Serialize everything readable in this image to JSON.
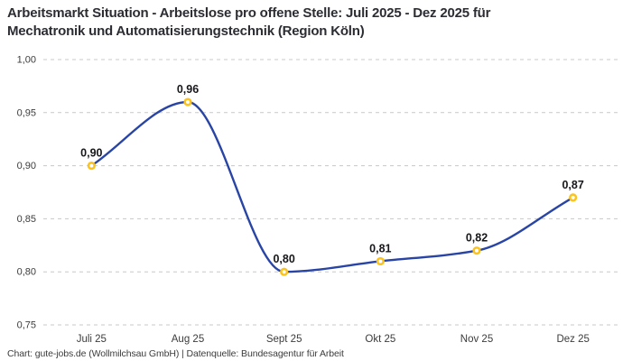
{
  "header": {
    "title_line1": "Arbeitsmarkt Situation - Arbeitslose pro offene Stelle: Juli 2025 - Dez 2025 für",
    "title_line2": "Mechatronik und Automatisierungstechnik (Region Köln)"
  },
  "chart_data": {
    "type": "line",
    "title": "Arbeitsmarkt Situation - Arbeitslose pro offene Stelle: Juli 2025 - Dez 2025 für Mechatronik und Automatisierungstechnik (Region Köln)",
    "categories": [
      "Juli 25",
      "Aug 25",
      "Sept 25",
      "Okt 25",
      "Nov 25",
      "Dez 25"
    ],
    "values": [
      0.9,
      0.96,
      0.8,
      0.81,
      0.82,
      0.87
    ],
    "point_labels": [
      "0,90",
      "0,96",
      "0,80",
      "0,81",
      "0,82",
      "0,87"
    ],
    "y_ticks": [
      {
        "value": 1.0,
        "label": "1,00"
      },
      {
        "value": 0.95,
        "label": "0,95"
      },
      {
        "value": 0.9,
        "label": "0,90"
      },
      {
        "value": 0.85,
        "label": "0,85"
      },
      {
        "value": 0.8,
        "label": "0,80"
      },
      {
        "value": 0.75,
        "label": "0,75"
      }
    ],
    "ylim": [
      0.75,
      1.0
    ],
    "xlabel": "",
    "ylabel": "",
    "grid": "horizontal-dashed",
    "legend": "none",
    "curve": "monotone",
    "colors": {
      "line": "#2844a5",
      "marker_ring": "#fcc31d",
      "marker_fill": "#ffffff",
      "gridline": "#c8c8c8",
      "axis_label": "#3c3c3c",
      "data_label": "#17171b",
      "background": "#ffffff"
    }
  },
  "footer": {
    "credit": "Chart: gute-jobs.de (Wollmilchsau GmbH) | Datenquelle: Bundesagentur für Arbeit"
  }
}
